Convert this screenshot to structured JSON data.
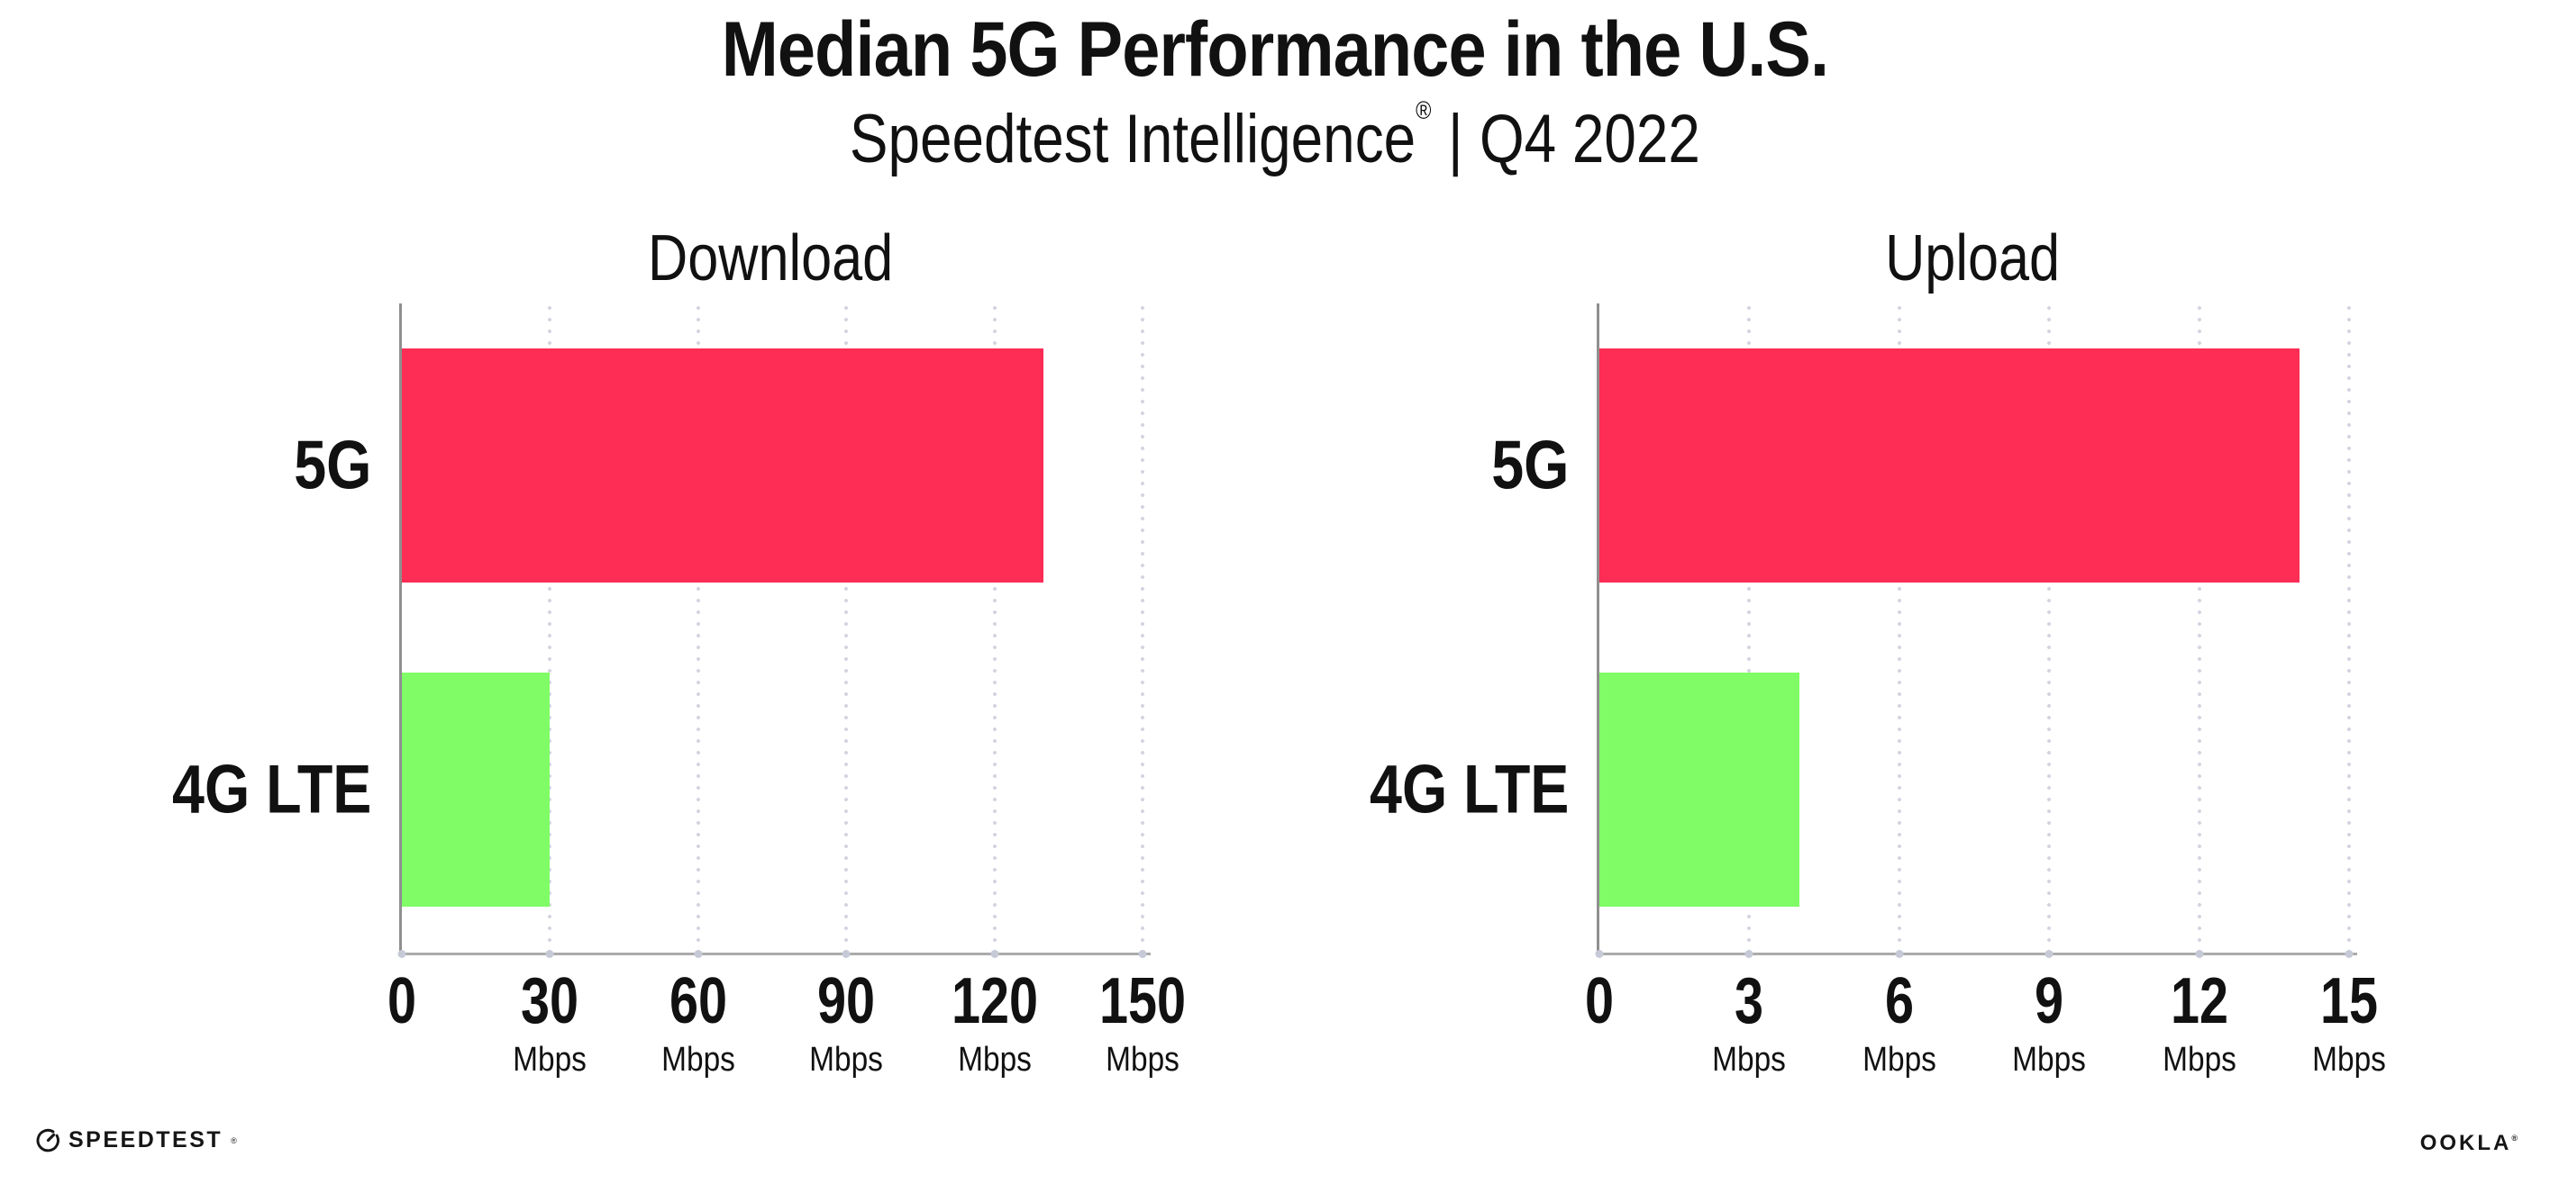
{
  "header": {
    "title": "Median 5G Performance in the U.S.",
    "subtitle": {
      "product": "Speedtest Intelligence",
      "registered_mark": "®",
      "separator": "|",
      "period": "Q4 2022"
    }
  },
  "chart_data": [
    {
      "type": "bar",
      "orientation": "horizontal",
      "title": "Download",
      "categories": [
        "5G",
        "4G LTE"
      ],
      "values": [
        130,
        30
      ],
      "unit": "Mbps",
      "xlim": [
        0,
        150
      ],
      "xticks": [
        0,
        30,
        60,
        90,
        120,
        150
      ],
      "bar_colors": [
        "#FD2D55",
        "#80FC66"
      ],
      "grid": "dotted-vertical-at-ticks",
      "legend": "none"
    },
    {
      "type": "bar",
      "orientation": "horizontal",
      "title": "Upload",
      "categories": [
        "5G",
        "4G LTE"
      ],
      "values": [
        14,
        4
      ],
      "unit": "Mbps",
      "xlim": [
        0,
        15
      ],
      "xticks": [
        0,
        3,
        6,
        9,
        12,
        15
      ],
      "bar_colors": [
        "#FD2D55",
        "#80FC66"
      ],
      "grid": "dotted-vertical-at-ticks",
      "legend": "none"
    }
  ],
  "colors": {
    "bar_5g": "#FD2D55",
    "bar_4g_lte": "#80FC66",
    "axis_line": "#8f8f8f",
    "baseline": "#ababab",
    "gridline_dots": "#d4d5e1",
    "text": "#111111"
  },
  "footer": {
    "speedtest_wordmark": "SPEEDTEST",
    "speedtest_mark": "®",
    "ookla_wordmark": "OOKLA",
    "ookla_mark": "®"
  }
}
